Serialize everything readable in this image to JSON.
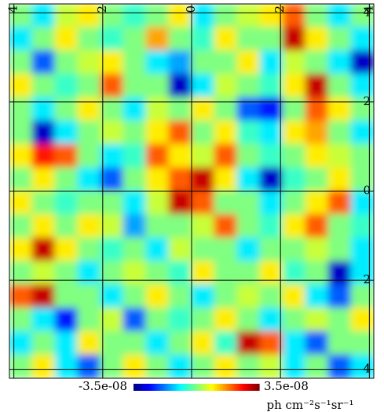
{
  "chart_data": {
    "type": "heatmap",
    "xlim": [
      4.1,
      -4.1
    ],
    "ylim": [
      4.2,
      -4.2
    ],
    "xticks": [
      4,
      2,
      0,
      {
        "value": -2,
        "label": "2"
      },
      {
        "value": -4,
        "label": "4"
      }
    ],
    "yticks": [
      4,
      2,
      0,
      {
        "value": -2,
        "label": "2"
      },
      {
        "value": -4,
        "label": "4"
      }
    ],
    "grid": true,
    "zlim": [
      -3.5e-08,
      3.5e-08
    ],
    "colorbar_ticks": [
      {
        "value": -3.5e-08,
        "label": "-3.5e-08"
      },
      {
        "value": 3.5e-08,
        "label": "3.5e-08"
      }
    ],
    "colorbar_label": "ph cm⁻²s⁻¹sr⁻¹",
    "colormap": "jet",
    "z": [
      [
        0,
        -1e-08,
        5e-09,
        1e-08,
        0,
        -5e-09,
        0,
        1e-08,
        -1e-08,
        0,
        5e-09,
        1e-08,
        2e-08,
        0,
        -1e-08,
        0
      ],
      [
        -1e-08,
        0,
        1e-08,
        0,
        -5e-09,
        0,
        1.5e-08,
        0,
        -5e-09,
        1e-08,
        0,
        0,
        3e-08,
        1e-08,
        0,
        -1e-08
      ],
      [
        0,
        -2e-08,
        0,
        5e-09,
        1e-08,
        0,
        -1e-08,
        -1.5e-08,
        0,
        0,
        1e-08,
        -1e-08,
        5e-09,
        0,
        -1e-08,
        -3e-08
      ],
      [
        1e-08,
        0,
        -5e-09,
        0,
        2e-08,
        0,
        0,
        -3e-08,
        -1e-08,
        5e-09,
        0,
        -5e-09,
        1e-08,
        3e-08,
        0,
        -1e-08
      ],
      [
        0,
        -1e-08,
        0,
        1e-08,
        0,
        -1e-08,
        5e-09,
        0,
        1e-08,
        0,
        -2e-08,
        -2.5e-08,
        0,
        2e-08,
        1e-08,
        0
      ],
      [
        0,
        -3e-08,
        -1e-08,
        0,
        5e-09,
        0,
        1e-08,
        2e-08,
        0,
        1e-08,
        -5e-09,
        -1e-08,
        1e-08,
        1.5e-08,
        0,
        -1e-08
      ],
      [
        1e-08,
        2.5e-08,
        2e-08,
        0,
        -1e-08,
        -5e-09,
        2e-08,
        1e-08,
        5e-09,
        2e-08,
        0,
        -5e-09,
        0,
        1e-08,
        5e-09,
        0
      ],
      [
        0,
        1e-08,
        0,
        -1e-08,
        -2e-08,
        0,
        1e-08,
        2e-08,
        3e-08,
        1e-08,
        -1e-08,
        -3e-08,
        -5e-09,
        0,
        1e-08,
        0
      ],
      [
        1e-08,
        0,
        -5e-09,
        0,
        0,
        -1e-08,
        5e-09,
        3e-08,
        2e-08,
        0,
        0,
        -1e-08,
        0,
        1e-08,
        2e-08,
        -1e-08
      ],
      [
        0,
        1e-08,
        0,
        1e-08,
        5e-09,
        -1.5e-08,
        0,
        0,
        5e-09,
        2e-08,
        0,
        -5e-09,
        1e-08,
        2e-08,
        0,
        -5e-09
      ],
      [
        1e-08,
        3e-08,
        1e-08,
        0,
        -5e-09,
        0,
        -1e-08,
        5e-09,
        0,
        0,
        -1e-08,
        0,
        0,
        5e-09,
        0,
        -1e-08
      ],
      [
        0,
        5e-09,
        0,
        -1e-08,
        0,
        5e-09,
        0,
        -5e-09,
        1e-08,
        0,
        0,
        1e-08,
        -5e-09,
        0,
        -3e-08,
        -1e-08
      ],
      [
        2e-08,
        3e-08,
        0,
        0,
        -1e-08,
        0,
        1e-08,
        0,
        -1e-08,
        0,
        5e-09,
        0,
        1e-08,
        -1e-08,
        -2e-08,
        0
      ],
      [
        0,
        -1e-08,
        -2.5e-08,
        0,
        5e-09,
        -2e-08,
        0,
        -5e-09,
        0,
        1e-08,
        0,
        -1e-08,
        0,
        5e-09,
        0,
        1e-08
      ],
      [
        -1e-08,
        0,
        -1e-08,
        1e-08,
        0,
        0,
        -1e-08,
        0,
        1e-08,
        -5e-09,
        3e-08,
        2e-08,
        -1e-08,
        -2e-08,
        0,
        0
      ],
      [
        0,
        1e-08,
        -1e-08,
        -2e-08,
        0,
        1e-08,
        0,
        -1e-08,
        0,
        1e-08,
        0,
        5e-09,
        -1e-08,
        0,
        -2e-08,
        -1e-08
      ]
    ]
  }
}
